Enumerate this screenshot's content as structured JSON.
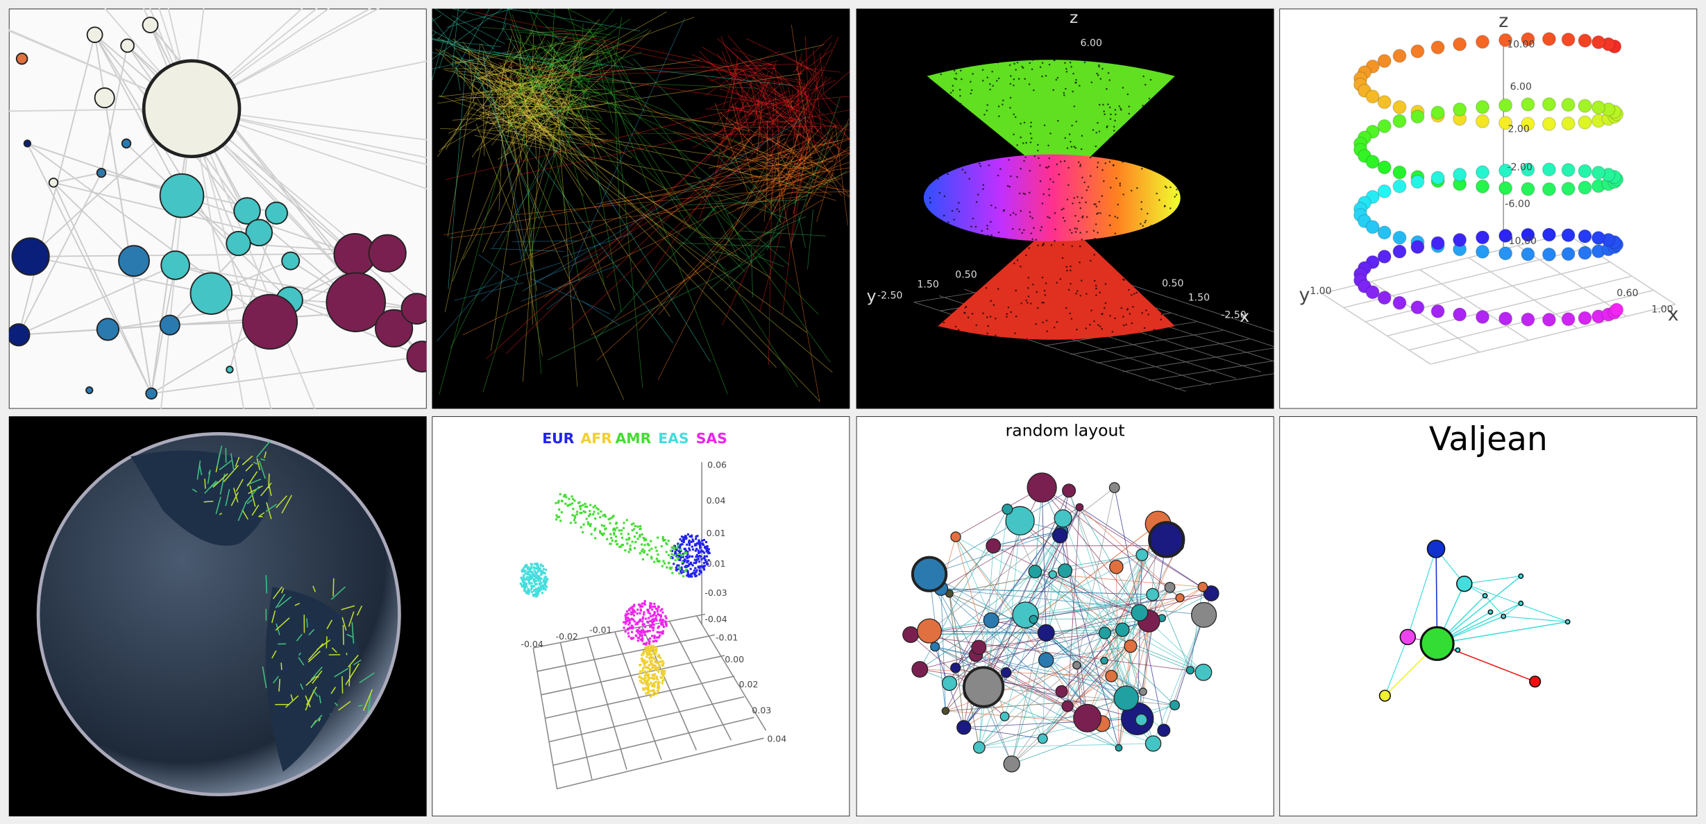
{
  "thumbnails": [
    {
      "labels": []
    },
    {
      "labels": []
    },
    {
      "labels": [
        "z",
        "6.00",
        "y",
        "-2.50",
        "1.50",
        "0.50",
        "0.50",
        "1.50",
        "-2.50",
        "x"
      ]
    },
    {
      "labels": [
        "z",
        "10.00",
        "6.00",
        "2.00",
        "-2.00",
        "-6.00",
        "-10.00",
        "y",
        "1.00",
        "0.60",
        "1.00",
        "x"
      ]
    },
    {
      "labels": []
    },
    {
      "legend": [
        "EUR",
        "AFR",
        "AMR",
        "EAS",
        "SAS"
      ],
      "labels": [
        "0.06",
        "0.04",
        "0.01",
        "0.01",
        "-0.03",
        "-0.04",
        "-0.04",
        "-0.02",
        "-0.01",
        "-0.01",
        "0.00",
        "0.02",
        "0.03",
        "0.04"
      ]
    },
    {
      "title": "random layout"
    },
    {
      "title": "Valjean"
    }
  ]
}
